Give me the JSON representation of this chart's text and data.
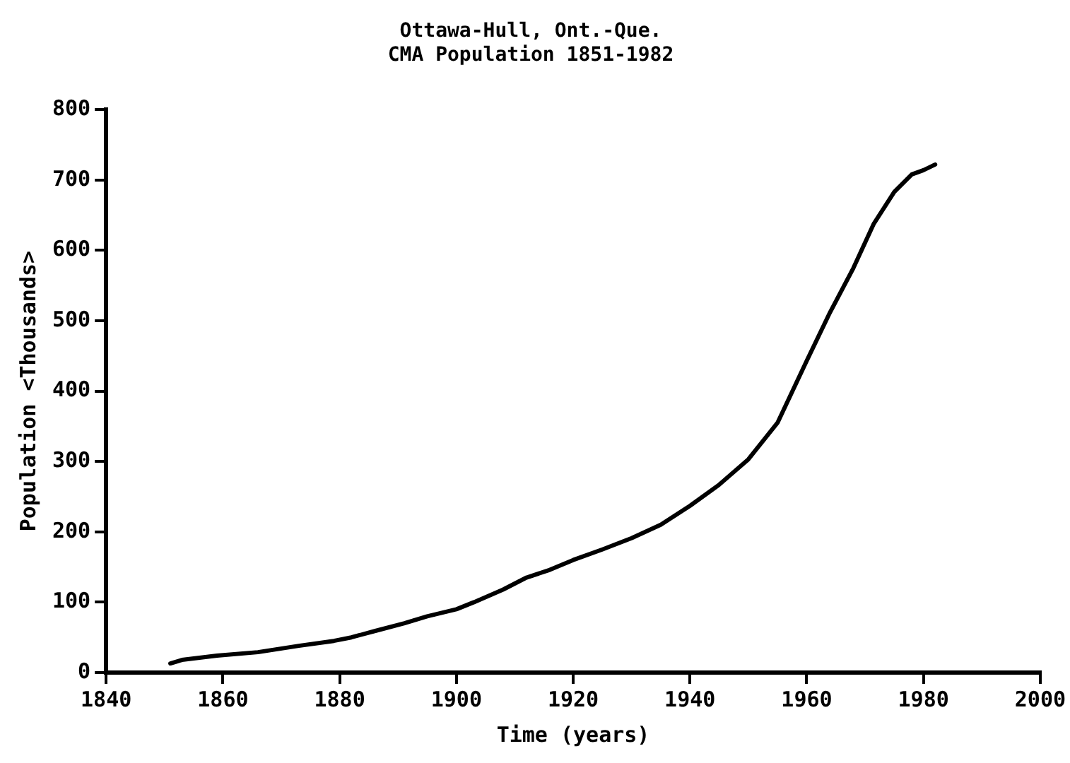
{
  "chart_data": {
    "type": "line",
    "title": "Ottawa-Hull, Ont.-Que.\nCMA Population 1851-1982",
    "xlabel": "Time (years)",
    "ylabel": "Population <Thousands>",
    "x": [
      1851,
      1853,
      1859,
      1866,
      1873,
      1879,
      1882,
      1886,
      1891,
      1895,
      1900,
      1903,
      1908,
      1912,
      1916,
      1920,
      1925,
      1930,
      1935,
      1940,
      1945,
      1950,
      1955,
      1960,
      1964,
      1968,
      1971.5,
      1975,
      1978,
      1980,
      1982
    ],
    "series": [
      {
        "color": "#000000",
        "values": [
          13,
          18,
          24,
          29,
          38,
          45,
          50,
          59,
          70,
          80,
          90,
          100,
          118,
          135,
          146,
          160,
          175,
          191,
          210,
          237,
          267,
          303,
          355,
          443,
          512,
          575,
          638,
          683,
          708,
          714,
          722
        ]
      }
    ],
    "xlim": [
      1840,
      2000
    ],
    "xticks": [
      1840,
      1860,
      1880,
      1900,
      1920,
      1940,
      1960,
      1980,
      2000
    ],
    "ylim": [
      0,
      800
    ],
    "yticks": [
      0,
      100,
      200,
      300,
      400,
      500,
      600,
      700,
      800
    ],
    "grid": false,
    "legend": false,
    "marker": "none",
    "line_style": "solid"
  }
}
